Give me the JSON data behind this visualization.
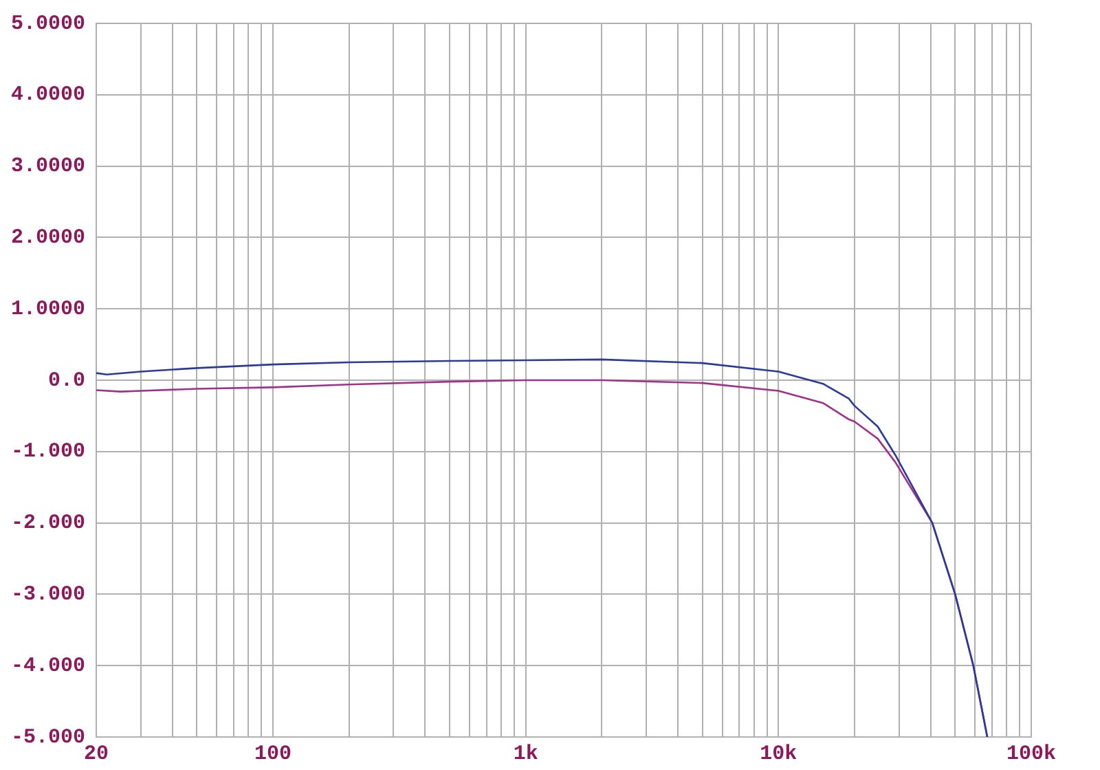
{
  "chart_data": {
    "type": "line",
    "log": "x",
    "grid": true,
    "legend": false,
    "marker": "none",
    "xlim": [
      20,
      100000
    ],
    "xticks": [
      {
        "value": 20,
        "label": "20"
      },
      {
        "value": 30,
        "label": null
      },
      {
        "value": 40,
        "label": null
      },
      {
        "value": 50,
        "label": null
      },
      {
        "value": 60,
        "label": null
      },
      {
        "value": 70,
        "label": null
      },
      {
        "value": 80,
        "label": null
      },
      {
        "value": 90,
        "label": null
      },
      {
        "value": 100,
        "label": "100"
      },
      {
        "value": 200,
        "label": null
      },
      {
        "value": 300,
        "label": null
      },
      {
        "value": 400,
        "label": null
      },
      {
        "value": 500,
        "label": null
      },
      {
        "value": 600,
        "label": null
      },
      {
        "value": 700,
        "label": null
      },
      {
        "value": 800,
        "label": null
      },
      {
        "value": 900,
        "label": null
      },
      {
        "value": 1000,
        "label": "1k"
      },
      {
        "value": 2000,
        "label": null
      },
      {
        "value": 3000,
        "label": null
      },
      {
        "value": 4000,
        "label": null
      },
      {
        "value": 5000,
        "label": null
      },
      {
        "value": 6000,
        "label": null
      },
      {
        "value": 7000,
        "label": null
      },
      {
        "value": 8000,
        "label": null
      },
      {
        "value": 9000,
        "label": null
      },
      {
        "value": 10000,
        "label": "10k"
      },
      {
        "value": 20000,
        "label": null
      },
      {
        "value": 30000,
        "label": null
      },
      {
        "value": 40000,
        "label": null
      },
      {
        "value": 50000,
        "label": null
      },
      {
        "value": 60000,
        "label": null
      },
      {
        "value": 70000,
        "label": null
      },
      {
        "value": 80000,
        "label": null
      },
      {
        "value": 90000,
        "label": null
      },
      {
        "value": 100000,
        "label": "100k"
      }
    ],
    "ylim": [
      -5,
      5
    ],
    "yticks": [
      {
        "value": 5,
        "label": "5.0000"
      },
      {
        "value": 4,
        "label": "4.0000"
      },
      {
        "value": 3,
        "label": "3.0000"
      },
      {
        "value": 2,
        "label": "2.0000"
      },
      {
        "value": 1,
        "label": "1.0000"
      },
      {
        "value": 0,
        "label": "0.0"
      },
      {
        "value": -1,
        "label": "-1.000"
      },
      {
        "value": -2,
        "label": "-2.000"
      },
      {
        "value": -3,
        "label": "-3.000"
      },
      {
        "value": -4,
        "label": "-4.000"
      },
      {
        "value": -5,
        "label": "-5.000"
      }
    ],
    "series": [
      {
        "color": "#2b3a9a",
        "x": [
          20,
          22,
          30,
          50,
          100,
          200,
          500,
          1000,
          2000,
          5000,
          10000,
          15000,
          19000,
          20000,
          24700,
          29000,
          40600,
          50000,
          59000,
          67000
        ],
        "values": [
          0.1,
          0.08,
          0.12,
          0.17,
          0.22,
          0.25,
          0.27,
          0.28,
          0.29,
          0.24,
          0.12,
          -0.05,
          -0.26,
          -0.36,
          -0.65,
          -1.05,
          -2.0,
          -3.0,
          -4.0,
          -5.0
        ]
      },
      {
        "color": "#a0308a",
        "x": [
          20,
          25,
          30,
          50,
          100,
          200,
          500,
          1000,
          2000,
          5000,
          10000,
          15000,
          19000,
          20000,
          24700,
          29000,
          40600,
          50000,
          59000,
          67000
        ],
        "values": [
          -0.14,
          -0.16,
          -0.15,
          -0.12,
          -0.1,
          -0.06,
          -0.02,
          0.0,
          0.0,
          -0.04,
          -0.15,
          -0.32,
          -0.55,
          -0.58,
          -0.82,
          -1.15,
          -2.0,
          -3.0,
          -4.0,
          -5.0
        ]
      }
    ]
  }
}
